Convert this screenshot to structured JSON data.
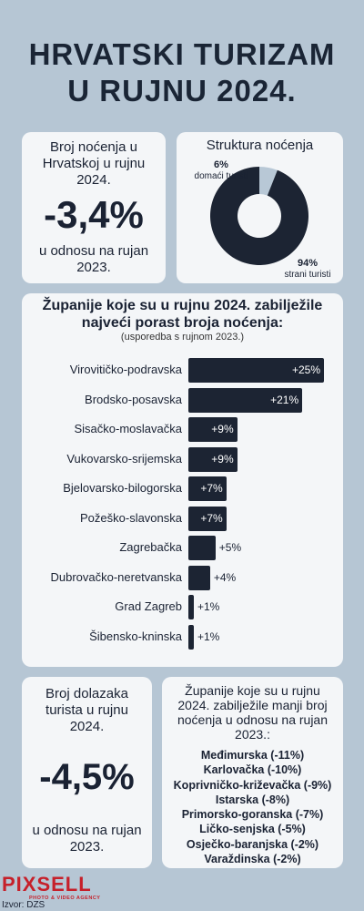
{
  "title": {
    "line1": "HRVATSKI TURIZAM",
    "line2": "U RUJNU 2024."
  },
  "nights_card": {
    "label_top": "Broj noćenja u Hrvatskoj u rujnu 2024.",
    "value": "-3,4%",
    "label_bottom": "u odnosu na rujan 2023."
  },
  "structure_card": {
    "title": "Struktura noćenja",
    "domestic_pct": "6%",
    "domestic_label": "domaći turisti",
    "foreign_pct": "94%",
    "foreign_label": "strani turisti"
  },
  "colors": {
    "background": "#b6c6d4",
    "card": "#f4f6f8",
    "dark": "#1c2433",
    "light_slice": "#b8c8d6",
    "brand": "#c6202a"
  },
  "chart_data": [
    {
      "type": "pie",
      "title": "Struktura noćenja",
      "categories": [
        "domaći turisti",
        "strani turisti"
      ],
      "values": [
        6,
        94
      ]
    },
    {
      "type": "bar",
      "title": "Županije koje su u rujnu 2024. zabilježile najveći porast broja noćenja:",
      "subtitle": "(usporedba s rujnom 2023.)",
      "categories": [
        "Virovitičko-podravska",
        "Brodsko-posavska",
        "Sisačko-moslavačka",
        "Vukovarsko-srijemska",
        "Bjelovarsko-bilogorska",
        "Požeško-slavonska",
        "Zagrebačka",
        "Dubrovačko-neretvanska",
        "Grad Zagreb",
        "Šibensko-kninska"
      ],
      "values": [
        25,
        21,
        9,
        9,
        7,
        7,
        5,
        4,
        1,
        1
      ],
      "value_labels": [
        "+25%",
        "+21%",
        "+9%",
        "+9%",
        "+7%",
        "+7%",
        "+5%",
        "+4%",
        "+1%",
        "+1%"
      ],
      "xlim": [
        0,
        25
      ]
    }
  ],
  "arrivals_card": {
    "label_top": "Broj dolazaka turista u rujnu 2024.",
    "value": "-4,5%",
    "label_bottom": "u odnosu na rujan 2023."
  },
  "decline_card": {
    "title": "Županije koje su u rujnu 2024. zabilježile manji broj noćenja u odnosu na rujan 2023.:",
    "items": [
      "Međimurska (-11%)",
      "Karlovačka (-10%)",
      "Koprivničko-križevačka (-9%)",
      "Istarska (-8%)",
      "Primorsko-goranska (-7%)",
      "Ličko-senjska (-5%)",
      "Osječko-baranjska (-2%)",
      "Varaždinska (-2%)"
    ]
  },
  "footer": {
    "logo": "PIXSELL",
    "logo_sub": "PHOTO & VIDEO AGENCY",
    "source": "Izvor: DZS"
  }
}
